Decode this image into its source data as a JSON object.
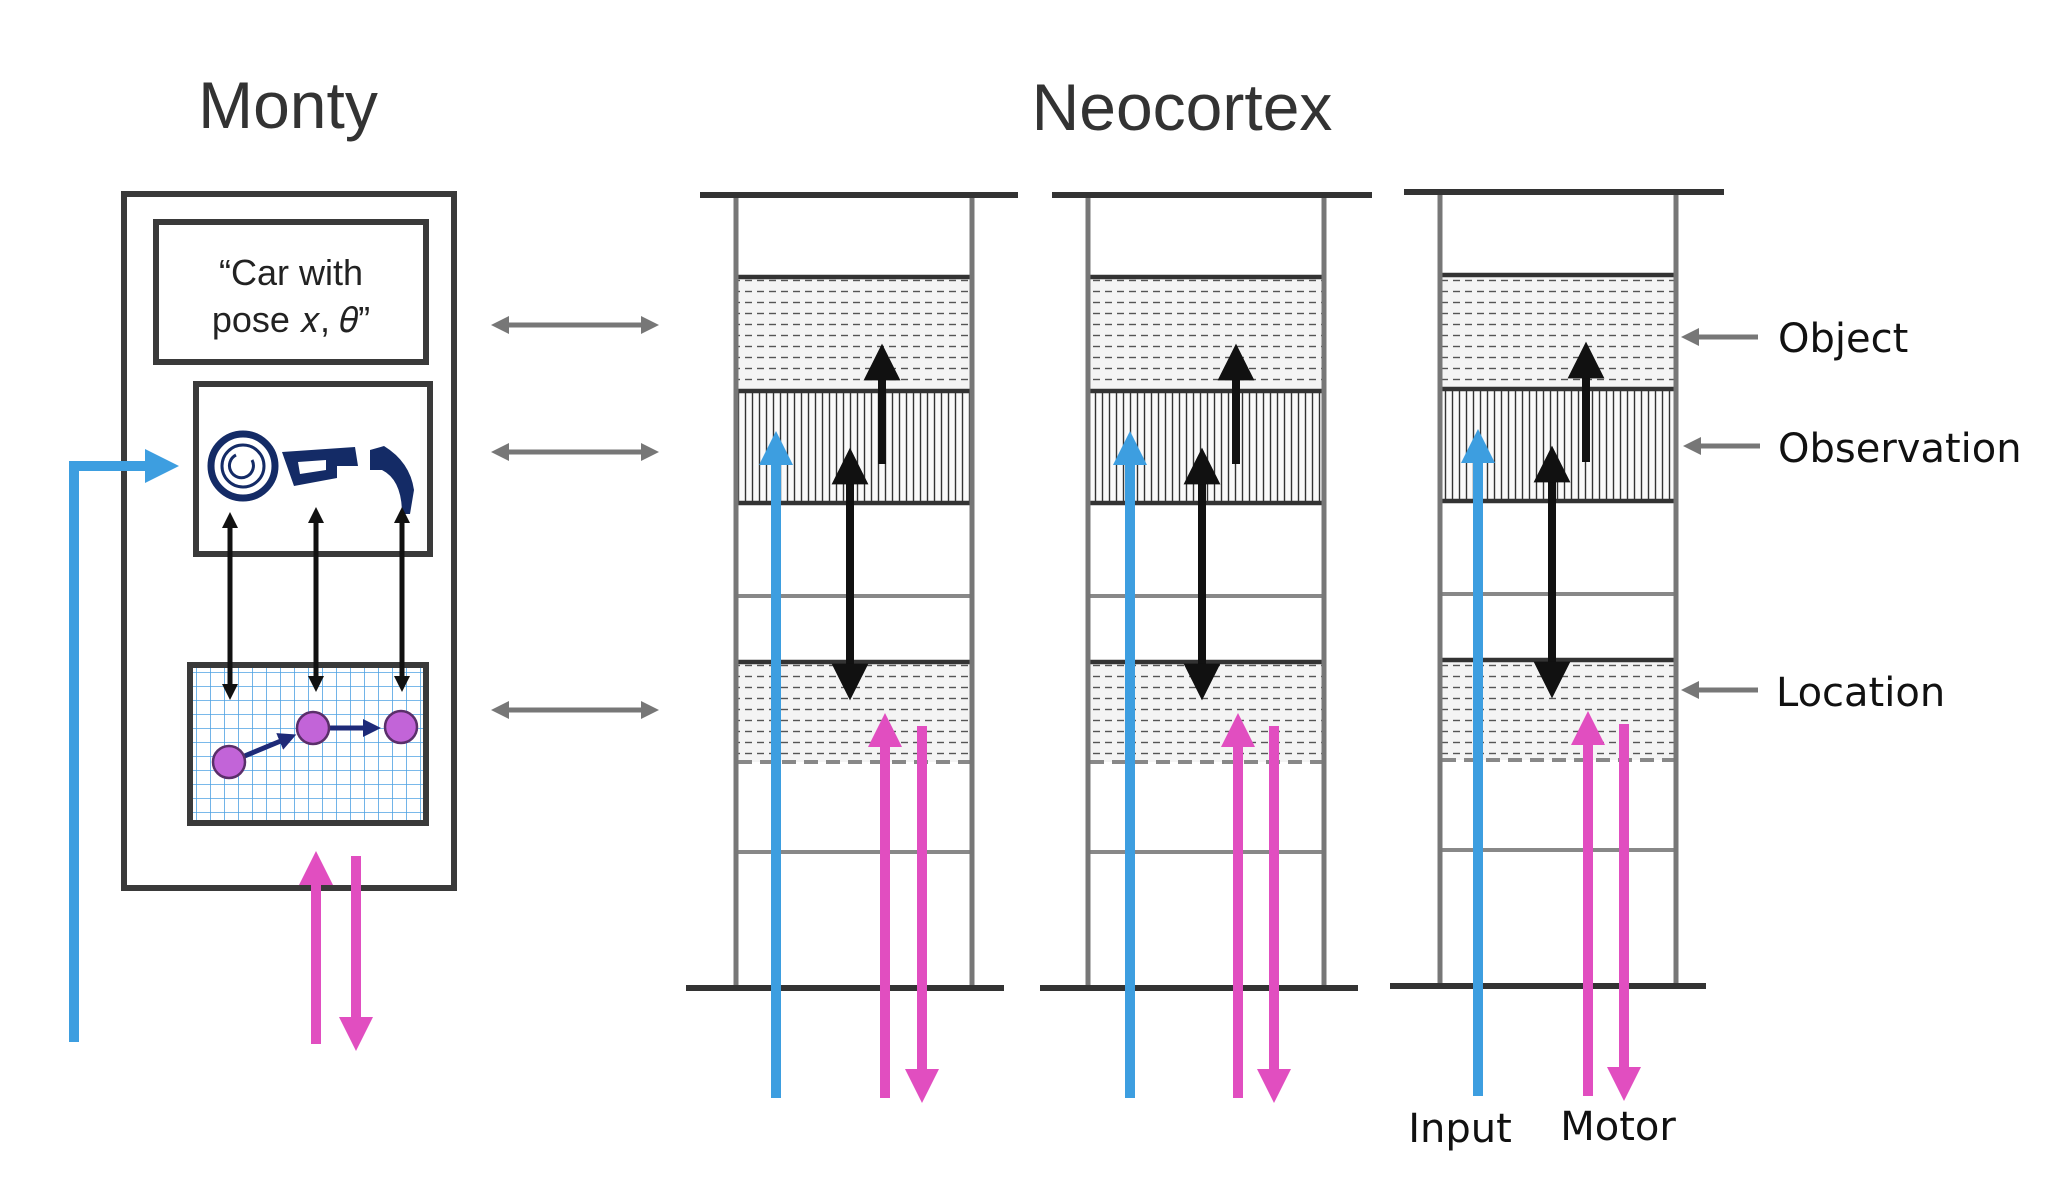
{
  "titles": {
    "monty": "Monty",
    "neocortex": "Neocortex"
  },
  "monty": {
    "caption_line1": "“Car with",
    "caption_line2": "pose 𝑥, 𝜃”"
  },
  "layer_labels": {
    "object": "Object",
    "observation": "Observation",
    "location": "Location"
  },
  "stream_labels": {
    "input": "Input",
    "motor": "Motor"
  },
  "colors": {
    "input": "#3d9ee0",
    "motor": "#e14ec0",
    "structure": "#777777",
    "dark": "#1a1a1a",
    "grid": "#4ea2e3",
    "node": "#c264d8",
    "car": "#142b66"
  }
}
